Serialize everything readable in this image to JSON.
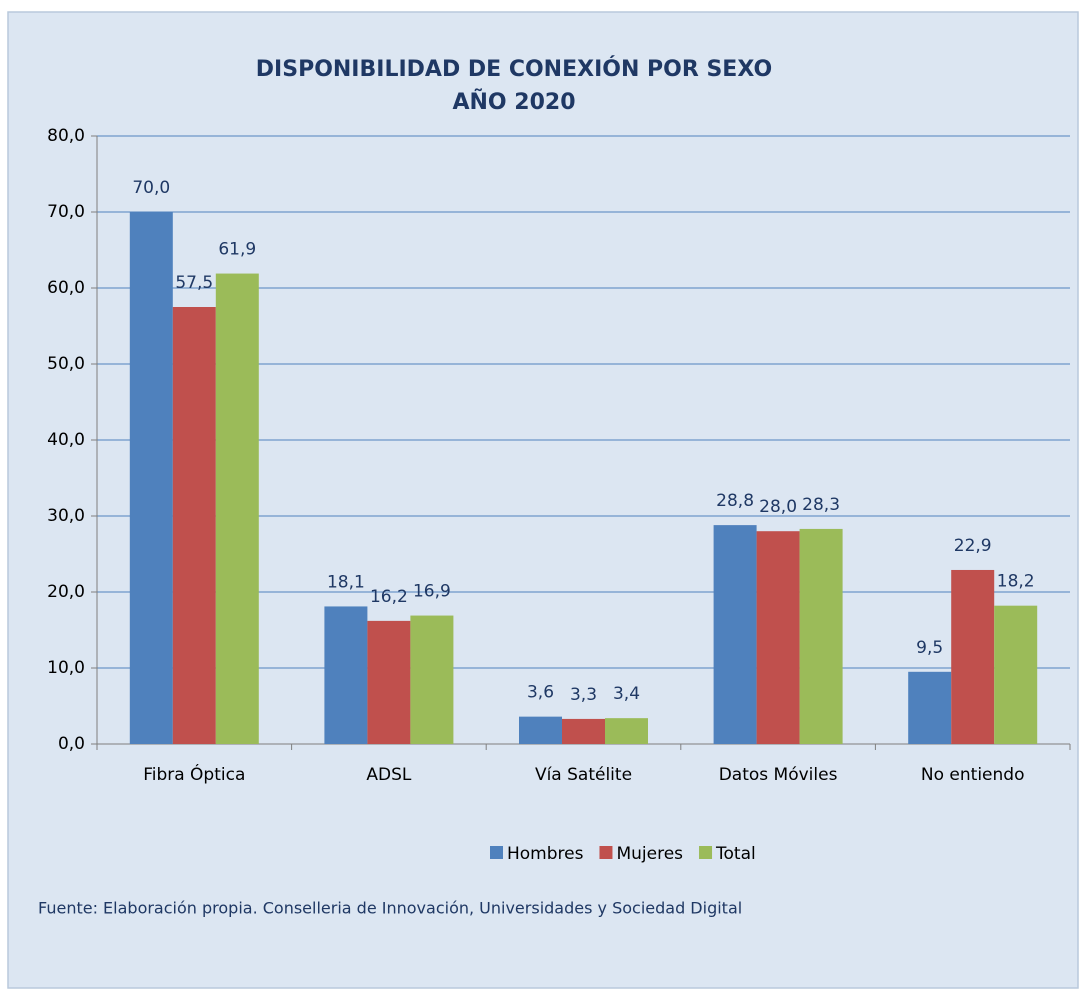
{
  "chart_data": {
    "type": "bar",
    "title": "DISPONIBILIDAD DE CONEXIÓN POR SEXO",
    "subtitle": "AÑO 2020",
    "categories": [
      "Fibra Óptica",
      "ADSL",
      "Vía Satélite",
      "Datos Móviles",
      "No entiendo"
    ],
    "series": [
      {
        "name": "Hombres",
        "color": "#4f81bd",
        "values": [
          70.0,
          18.1,
          3.6,
          28.8,
          9.5
        ],
        "value_labels": [
          "70,0",
          "18,1",
          "3,6",
          "28,8",
          "9,5"
        ]
      },
      {
        "name": "Mujeres",
        "color": "#c0504d",
        "values": [
          57.5,
          16.2,
          3.3,
          28.0,
          22.9
        ],
        "value_labels": [
          "57,5",
          "16,2",
          "3,3",
          "28,0",
          "22,9"
        ]
      },
      {
        "name": "Total",
        "color": "#9bbb59",
        "values": [
          61.9,
          16.9,
          3.4,
          28.3,
          18.2
        ],
        "value_labels": [
          "61,9",
          "16,9",
          "3,4",
          "28,3",
          "18,2"
        ]
      }
    ],
    "ylim": [
      0,
      80
    ],
    "yticks": [
      {
        "value": 0,
        "label": "0,0"
      },
      {
        "value": 10,
        "label": "10,0"
      },
      {
        "value": 20,
        "label": "20,0"
      },
      {
        "value": 30,
        "label": "30,0"
      },
      {
        "value": 40,
        "label": "40,0"
      },
      {
        "value": 50,
        "label": "50,0"
      },
      {
        "value": 60,
        "label": "60,0"
      },
      {
        "value": 70,
        "label": "70,0"
      },
      {
        "value": 80,
        "label": "80,0"
      }
    ],
    "grid": true,
    "legend": "bottom",
    "source": "Fuente:  Elaboración propia. Conselleria de Innovación, Universidades y Sociedad Digital"
  }
}
